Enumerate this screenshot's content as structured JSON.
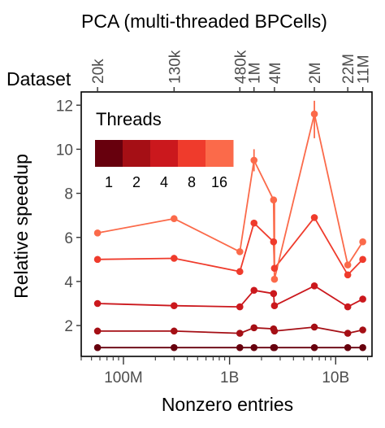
{
  "chart_data": {
    "type": "line",
    "title": "PCA (multi-threaded BPCells)",
    "xlabel": "Nonzero entries",
    "ylabel": "Relative speedup",
    "xscale": "log",
    "xlim": [
      40000000,
      22000000000
    ],
    "ylim": [
      0.6,
      12.6
    ],
    "yticks": [
      2,
      4,
      6,
      8,
      10,
      12
    ],
    "x_major_ticks": [
      {
        "value": 100000000,
        "label": "100M"
      },
      {
        "value": 1000000000,
        "label": "1B"
      },
      {
        "value": 10000000000,
        "label": "10B"
      }
    ],
    "top_axis": {
      "label": "Dataset",
      "ticks": [
        {
          "value": 57000000,
          "label": "20k"
        },
        {
          "value": 300000000,
          "label": "130k"
        },
        {
          "value": 1250000000,
          "label": "480k"
        },
        {
          "value": 1700000000,
          "label": "1M"
        },
        {
          "value": 2650000000,
          "label": "4M"
        },
        {
          "value": 6300000000,
          "label": "2M"
        },
        {
          "value": 13000000000,
          "label": "22M"
        },
        {
          "value": 18000000000,
          "label": "11M"
        }
      ]
    },
    "x": [
      57000000,
      300000000,
      1250000000,
      1700000000,
      2600000000,
      2650000000,
      6300000000,
      13000000000,
      18000000000
    ],
    "legend": {
      "title": "Threads",
      "placement": "top-left"
    },
    "series": [
      {
        "name": "1",
        "color": "#67000d",
        "values": [
          1.0,
          1.0,
          1.0,
          1.0,
          1.0,
          1.0,
          1.0,
          1.0,
          1.0
        ]
      },
      {
        "name": "2",
        "color": "#a50f15",
        "values": [
          1.75,
          1.75,
          1.65,
          1.9,
          1.85,
          1.75,
          1.93,
          1.65,
          1.8
        ]
      },
      {
        "name": "4",
        "color": "#cb181d",
        "values": [
          3.0,
          2.9,
          2.85,
          3.6,
          3.45,
          2.9,
          3.8,
          2.85,
          3.2
        ]
      },
      {
        "name": "8",
        "color": "#ef3b2c",
        "values": [
          5.0,
          5.05,
          4.45,
          6.65,
          5.8,
          4.6,
          6.9,
          4.3,
          5.0
        ]
      },
      {
        "name": "16",
        "color": "#fb6a4a",
        "values": [
          6.2,
          6.85,
          5.35,
          9.5,
          7.7,
          4.1,
          11.6,
          4.75,
          5.8
        ]
      }
    ],
    "error_bars": [
      {
        "series": "16",
        "x": 1700000000,
        "low": 9.0,
        "high": 10.0
      },
      {
        "series": "16",
        "x": 2650000000,
        "low": 4.5,
        "high": 7.8
      },
      {
        "series": "16",
        "x": 6300000000,
        "low": 10.5,
        "high": 12.2
      }
    ],
    "grid": false
  }
}
